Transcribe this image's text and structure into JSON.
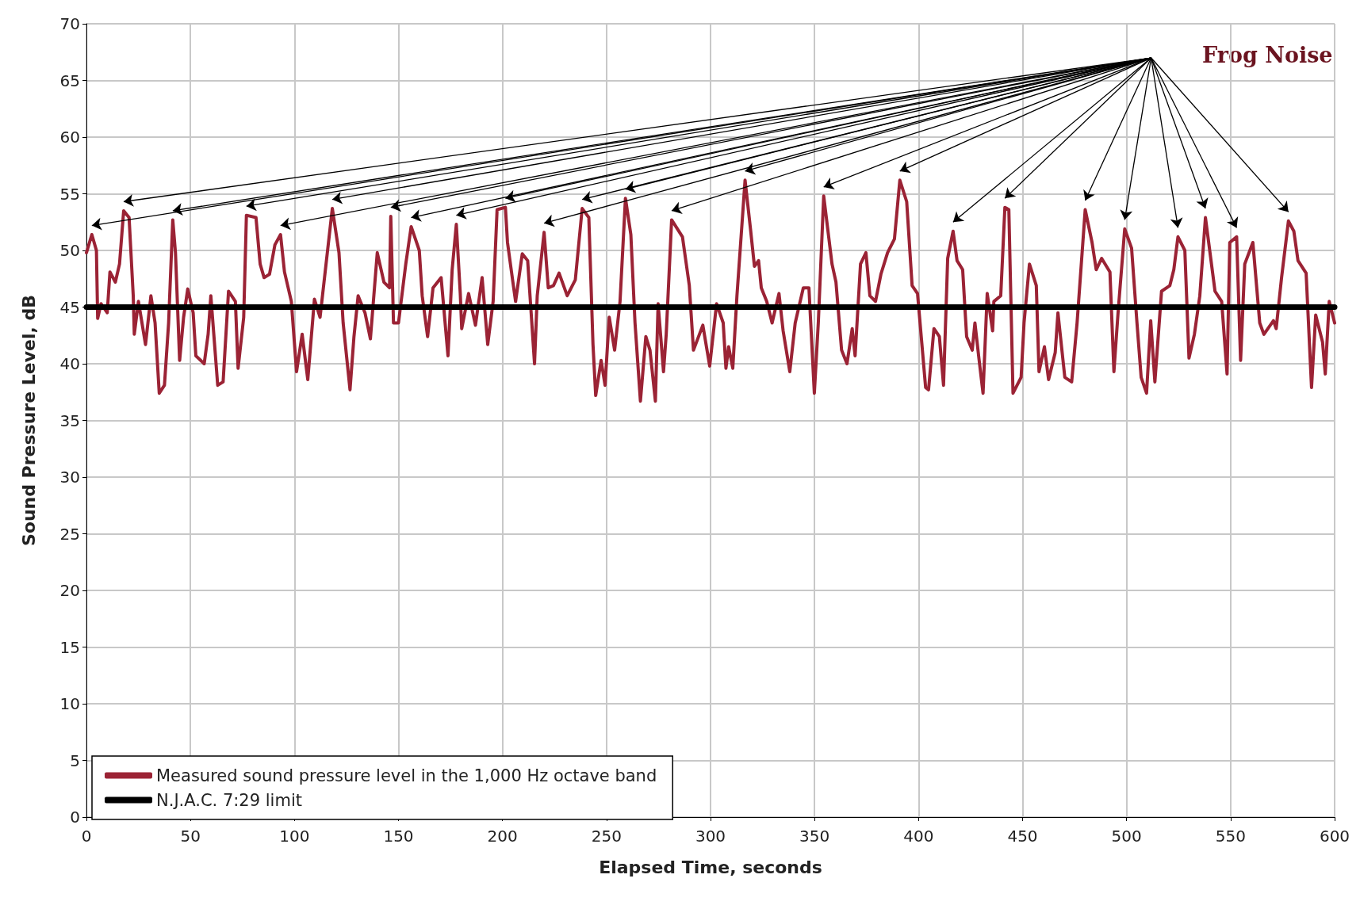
{
  "chart_data": {
    "type": "line",
    "xlabel": "Elapsed Time, seconds",
    "ylabel": "Sound Pressure Level, dB",
    "annotations": [
      "Frog Noise"
    ],
    "xlim": [
      0,
      600
    ],
    "xticks": [
      0,
      50,
      100,
      150,
      200,
      250,
      300,
      350,
      400,
      450,
      500,
      550,
      600
    ],
    "ylim": [
      0,
      70
    ],
    "yticks": [
      0,
      5,
      10,
      15,
      20,
      25,
      30,
      35,
      40,
      45,
      50,
      55,
      60,
      65,
      70
    ],
    "grid": true,
    "legend": "bottom left",
    "marker": "none",
    "line_style": "solid",
    "series": [
      {
        "name": "Measured sound pressure level in the 1,000 Hz octave band",
        "color": "#9b2335",
        "x": [
          0,
          2.6,
          4.8,
          5.4,
          7,
          10,
          11.3,
          13.9,
          15.9,
          17.9,
          20.5,
          22.5,
          23,
          25,
          28.4,
          31,
          33,
          35,
          37.5,
          39.5,
          41.5,
          42.8,
          44.8,
          46.7,
          48.7,
          51.3,
          52.6,
          56.6,
          58.5,
          59.8,
          63.1,
          65.7,
          68.3,
          71.6,
          72.9,
          75.6,
          76.9,
          81.5,
          83.5,
          85.4,
          88,
          90.6,
          93.3,
          95.2,
          98.5,
          101,
          103.7,
          106.4,
          109.6,
          112.3,
          114.2,
          118.2,
          121.4,
          123.4,
          126.7,
          128.6,
          130.6,
          133.9,
          136.5,
          139.8,
          143,
          145.7,
          146.3,
          147.6,
          150,
          153.5,
          156.1,
          160,
          161.4,
          164,
          166.6,
          170.5,
          173.8,
          175.8,
          177.8,
          179.7,
          180.4,
          183.7,
          187,
          190.2,
          192.9,
          195.5,
          197.4,
          201.4,
          202.4,
          205,
          206.3,
          209.5,
          212.1,
          215.4,
          216.7,
          220,
          222,
          224.5,
          227.2,
          231.1,
          235,
          238.3,
          241.5,
          243.5,
          244.8,
          247.4,
          249.3,
          251.3,
          253.9,
          256.5,
          259.1,
          261.7,
          263.7,
          266.3,
          268.9,
          270.9,
          273.5,
          274.8,
          277.4,
          278.7,
          281.3,
          286.5,
          289.8,
          291.8,
          296.3,
          299.6,
          302.9,
          306.1,
          307.4,
          308.7,
          310.7,
          312.7,
          316.6,
          319.2,
          321.1,
          323.1,
          324.4,
          327,
          329.6,
          332.9,
          334.9,
          338.1,
          340.7,
          344.6,
          347.3,
          349.9,
          351.8,
          354.4,
          358.4,
          360.3,
          363,
          365.6,
          368.1,
          369.5,
          372.1,
          374.7,
          376.6,
          379.3,
          381.9,
          385.1,
          388.4,
          391,
          394.3,
          396.9,
          399.5,
          403.4,
          404.8,
          407.4,
          410,
          412,
          414,
          416.6,
          418.5,
          421.2,
          423.1,
          425.8,
          427.1,
          429,
          431,
          433,
          435.6,
          436.2,
          439.5,
          441.5,
          443.4,
          445.4,
          449.3,
          450.7,
          453.3,
          456.6,
          457.9,
          460.5,
          462.5,
          465.7,
          467,
          470.3,
          473.6,
          476.2,
          480.1,
          483.4,
          485.4,
          488,
          492,
          493.9,
          495.9,
          499.1,
          502.4,
          505,
          507,
          509.6,
          511.6,
          513.6,
          516.8,
          520.8,
          522.7,
          524.7,
          528,
          530,
          532.6,
          535.2,
          537.9,
          542.5,
          545.7,
          548.3,
          549.6,
          552.9,
          554.8,
          556.8,
          560.7,
          564,
          566,
          570.6,
          571.9,
          574.5,
          577.8,
          580.4,
          582.4,
          586.3,
          588.9,
          590.9,
          594.2,
          595.5,
          597.4,
          600
        ],
        "values": [
          49.8,
          51.4,
          50,
          44,
          45.3,
          44.5,
          48.1,
          47.2,
          48.8,
          53.5,
          52.9,
          46,
          42.6,
          45.5,
          41.7,
          46,
          43.6,
          37.4,
          38.1,
          43.6,
          52.7,
          49.8,
          40.3,
          44.1,
          46.6,
          44.5,
          40.7,
          40,
          42.6,
          46,
          38.1,
          38.4,
          46.4,
          45.5,
          39.6,
          44.1,
          53.1,
          52.9,
          48.8,
          47.6,
          47.9,
          50.5,
          51.4,
          48.1,
          45.5,
          39.3,
          42.6,
          38.6,
          45.7,
          44.1,
          47.2,
          53.7,
          49.8,
          43.6,
          37.7,
          42.4,
          46,
          44.5,
          42.2,
          49.8,
          47.2,
          46.7,
          53,
          43.6,
          43.6,
          48.8,
          52.1,
          50,
          46,
          42.4,
          46.7,
          47.6,
          40.7,
          48.3,
          52.3,
          46.2,
          43.1,
          46.2,
          43.4,
          47.6,
          41.7,
          45.5,
          53.6,
          53.8,
          50.7,
          47.2,
          45.5,
          49.7,
          49.1,
          40,
          46,
          51.6,
          46.7,
          46.9,
          48,
          46,
          47.4,
          53.7,
          52.9,
          41.7,
          37.2,
          40.3,
          38.1,
          44.1,
          41.2,
          45.5,
          54.6,
          51.4,
          43.6,
          36.7,
          42.4,
          41.2,
          36.7,
          45.3,
          39.3,
          42.6,
          52.7,
          51.2,
          46.9,
          41.2,
          43.4,
          39.8,
          45.3,
          43.6,
          39.6,
          41.5,
          39.6,
          46,
          56.2,
          51.9,
          48.6,
          49.1,
          46.7,
          45.5,
          43.6,
          46.2,
          42.9,
          39.3,
          43.6,
          46.7,
          46.7,
          37.4,
          43.6,
          54.8,
          48.8,
          47.2,
          41.2,
          40,
          43.1,
          40.7,
          48.8,
          49.8,
          46,
          45.5,
          47.9,
          49.8,
          51,
          56.2,
          54.3,
          46.9,
          46.2,
          37.9,
          37.7,
          43.1,
          42.4,
          38.1,
          49.3,
          51.7,
          49.1,
          48.3,
          42.4,
          41.2,
          43.6,
          40.5,
          37.4,
          46.2,
          42.9,
          45.5,
          46,
          53.8,
          53.6,
          37.4,
          38.8,
          43.6,
          48.8,
          46.9,
          39.3,
          41.5,
          38.6,
          41,
          44.5,
          38.8,
          38.4,
          43.6,
          53.6,
          50.7,
          48.3,
          49.3,
          48.1,
          39.3,
          44.5,
          51.9,
          50.2,
          43.6,
          38.8,
          37.4,
          43.8,
          38.4,
          46.4,
          46.9,
          48.3,
          51.2,
          50,
          40.5,
          42.6,
          46,
          52.9,
          46.4,
          45.5,
          39.1,
          50.7,
          51.2,
          40.3,
          48.8,
          50.7,
          43.6,
          42.6,
          43.8,
          43.1,
          47.6,
          52.6,
          51.7,
          49.1,
          48,
          37.9,
          44.3,
          41.9,
          39.1,
          45.5,
          43.6
        ]
      },
      {
        "name": "N.J.A.C. 7:29 limit",
        "color": "#000000",
        "x": [
          0,
          600
        ],
        "values": [
          45,
          45
        ]
      }
    ]
  }
}
